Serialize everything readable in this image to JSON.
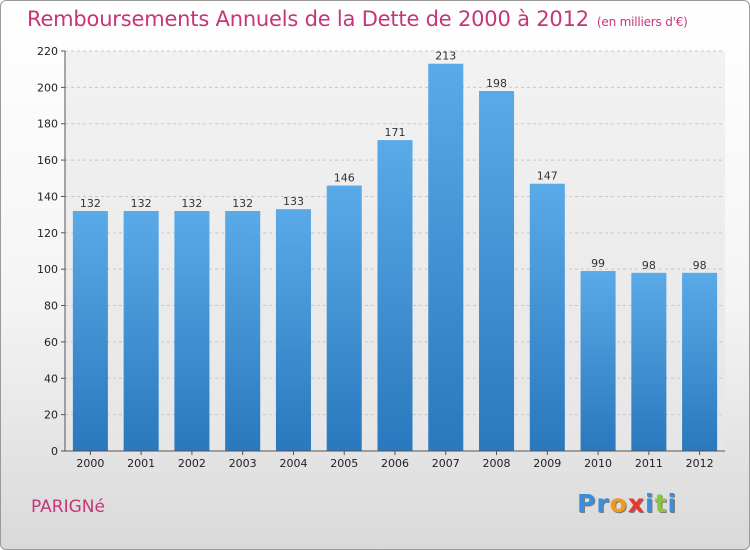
{
  "title": "Remboursements Annuels de la Dette de 2000 à 2012",
  "unit": "(en milliers d'€)",
  "commune": "PARIGNé",
  "logo": {
    "letters": [
      {
        "ch": "P",
        "color": "#3b8fd8"
      },
      {
        "ch": "r",
        "color": "#3b8fd8"
      },
      {
        "ch": "o",
        "color": "#f29a1f"
      },
      {
        "ch": "x",
        "color": "#e8382b"
      },
      {
        "ch": "i",
        "color": "#3b8fd8"
      },
      {
        "ch": "t",
        "color": "#8cc63f"
      },
      {
        "ch": "i",
        "color": "#3b8fd8"
      }
    ]
  },
  "chart_data": {
    "type": "bar",
    "categories": [
      "2000",
      "2001",
      "2002",
      "2003",
      "2004",
      "2005",
      "2006",
      "2007",
      "2008",
      "2009",
      "2010",
      "2011",
      "2012"
    ],
    "values": [
      132,
      132,
      132,
      132,
      133,
      146,
      171,
      213,
      198,
      147,
      99,
      98,
      98
    ],
    "title": "Remboursements Annuels de la Dette de 2000 à 2012",
    "ylabel": "",
    "xlabel": "",
    "ylim": [
      0,
      220
    ],
    "yticks": [
      0,
      20,
      40,
      60,
      80,
      100,
      120,
      140,
      160,
      180,
      200,
      220
    ],
    "grid": true,
    "bar_color_top": "#5aaae8",
    "bar_color_bottom": "#2a78bd"
  }
}
